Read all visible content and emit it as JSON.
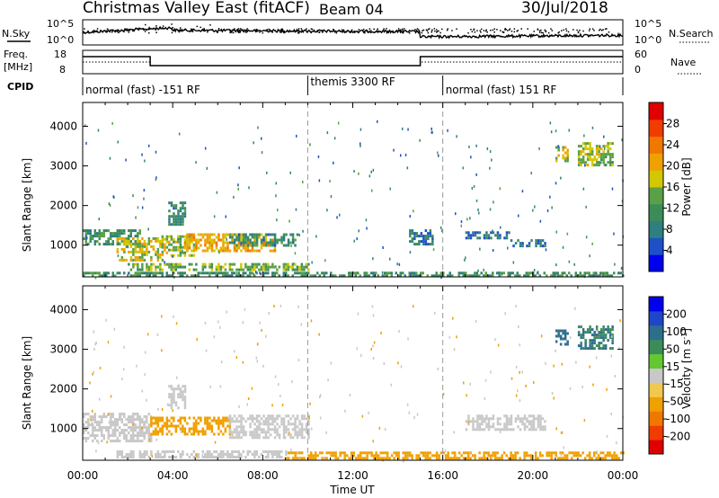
{
  "header": {
    "title": "Christmas Valley East (fitACF)",
    "beam": "Beam 04",
    "date": "30/Jul/2018"
  },
  "top_panels": {
    "nsky_label": "N.Sky",
    "nsky_ticks": [
      "10^5",
      "10^0"
    ],
    "nsearch_label": "N.Search",
    "nsearch_ticks": [
      "10^5",
      "10^0"
    ],
    "freq_label": "Freq.",
    "freq_unit": "[MHz]",
    "freq_ticks": [
      "18",
      "8"
    ],
    "nave_label": "Nave",
    "nave_ticks": [
      "60",
      "0"
    ],
    "cpid_label": "CPID",
    "cpid_segments": [
      {
        "label": "normal (fast) -151 RF",
        "start_hour": 0,
        "end_hour": 10
      },
      {
        "label": "themis 3300 RF",
        "start_hour": 10,
        "end_hour": 16
      },
      {
        "label": "normal (fast) 151 RF",
        "start_hour": 16,
        "end_hour": 24
      }
    ]
  },
  "chart_data": [
    {
      "type": "heatmap",
      "panel": "power",
      "ylabel": "Slant Range [km]",
      "xlabel": "Time UT",
      "xlim": [
        0,
        24
      ],
      "ylim": [
        200,
        4600
      ],
      "x_ticks": [
        "00:00",
        "04:00",
        "08:00",
        "12:00",
        "16:00",
        "20:00",
        "00:00"
      ],
      "y_ticks": [
        1000,
        2000,
        3000,
        4000
      ],
      "colorbar": {
        "label": "Power [dB]",
        "ticks": [
          4,
          8,
          12,
          16,
          20,
          24,
          28
        ],
        "colors": [
          "#0000ee",
          "#1e50c8",
          "#2e7f7f",
          "#3c8c5a",
          "#5aa046",
          "#d2c800",
          "#f0a000",
          "#f07800",
          "#f03c00",
          "#e00000"
        ]
      },
      "regions": [
        {
          "t0": 0.0,
          "t1": 2.5,
          "r0": 1000,
          "r1": 1400,
          "value": 14
        },
        {
          "t0": 1.5,
          "t1": 3.5,
          "r0": 650,
          "r1": 1200,
          "value": 22
        },
        {
          "t0": 3.5,
          "t1": 5.0,
          "r0": 750,
          "r1": 1250,
          "value": 20
        },
        {
          "t0": 4.5,
          "t1": 8.5,
          "r0": 850,
          "r1": 1300,
          "value": 25
        },
        {
          "t0": 6.5,
          "t1": 9.5,
          "r0": 1000,
          "r1": 1300,
          "value": 12
        },
        {
          "t0": 2.0,
          "t1": 10.0,
          "r0": 350,
          "r1": 550,
          "value": 18
        },
        {
          "t0": 0.0,
          "t1": 24.0,
          "r0": 250,
          "r1": 330,
          "value": 14
        },
        {
          "t0": 3.8,
          "t1": 4.5,
          "r0": 1500,
          "r1": 2100,
          "value": 12
        },
        {
          "t0": 17.0,
          "t1": 19.0,
          "r0": 1150,
          "r1": 1350,
          "value": 10
        },
        {
          "t0": 19.0,
          "t1": 20.5,
          "r0": 950,
          "r1": 1150,
          "value": 10
        },
        {
          "t0": 21.0,
          "t1": 21.5,
          "r0": 3150,
          "r1": 3500,
          "value": 22
        },
        {
          "t0": 22.0,
          "t1": 23.5,
          "r0": 3000,
          "r1": 3600,
          "value": 20
        },
        {
          "t0": 14.5,
          "t1": 15.5,
          "r0": 1000,
          "r1": 1400,
          "value": 10
        }
      ]
    },
    {
      "type": "heatmap",
      "panel": "velocity",
      "ylabel": "Slant Range [km]",
      "xlabel": "Time UT",
      "xlim": [
        0,
        24
      ],
      "ylim": [
        200,
        4600
      ],
      "x_ticks": [
        "00:00",
        "04:00",
        "08:00",
        "12:00",
        "16:00",
        "20:00",
        "00:00"
      ],
      "y_ticks": [
        1000,
        2000,
        3000,
        4000
      ],
      "colorbar": {
        "label": "Velocity [m s",
        "label_sup": "-1",
        "label_end": "]",
        "ticks": [
          -200,
          -100,
          -50,
          -15,
          15,
          50,
          100,
          200
        ],
        "colors": [
          "#e00000",
          "#f03c00",
          "#f07800",
          "#f0a000",
          "#f0c850",
          "#c8c8c8",
          "#64c832",
          "#3c8c5a",
          "#2e6e8c",
          "#1e46c8",
          "#0000ee"
        ]
      },
      "regions": [
        {
          "t0": 0.0,
          "t1": 3.0,
          "r0": 700,
          "r1": 1400,
          "value": 0
        },
        {
          "t0": 3.0,
          "t1": 6.5,
          "r0": 850,
          "r1": 1300,
          "value": -40
        },
        {
          "t0": 6.5,
          "t1": 10.0,
          "r0": 800,
          "r1": 1350,
          "value": 0
        },
        {
          "t0": 1.5,
          "t1": 9.0,
          "r0": 280,
          "r1": 450,
          "value": 40
        },
        {
          "t0": 9.0,
          "t1": 24.0,
          "r0": 250,
          "r1": 420,
          "value": -40
        },
        {
          "t0": 3.8,
          "t1": 4.5,
          "r0": 1500,
          "r1": 2100,
          "value": 0
        },
        {
          "t0": 17.0,
          "t1": 20.5,
          "r0": 950,
          "r1": 1350,
          "value": 0
        },
        {
          "t0": 21.0,
          "t1": 21.5,
          "r0": 3150,
          "r1": 3500,
          "value": 220
        },
        {
          "t0": 22.0,
          "t1": 23.5,
          "r0": 3000,
          "r1": 3600,
          "value": 200
        }
      ]
    }
  ]
}
